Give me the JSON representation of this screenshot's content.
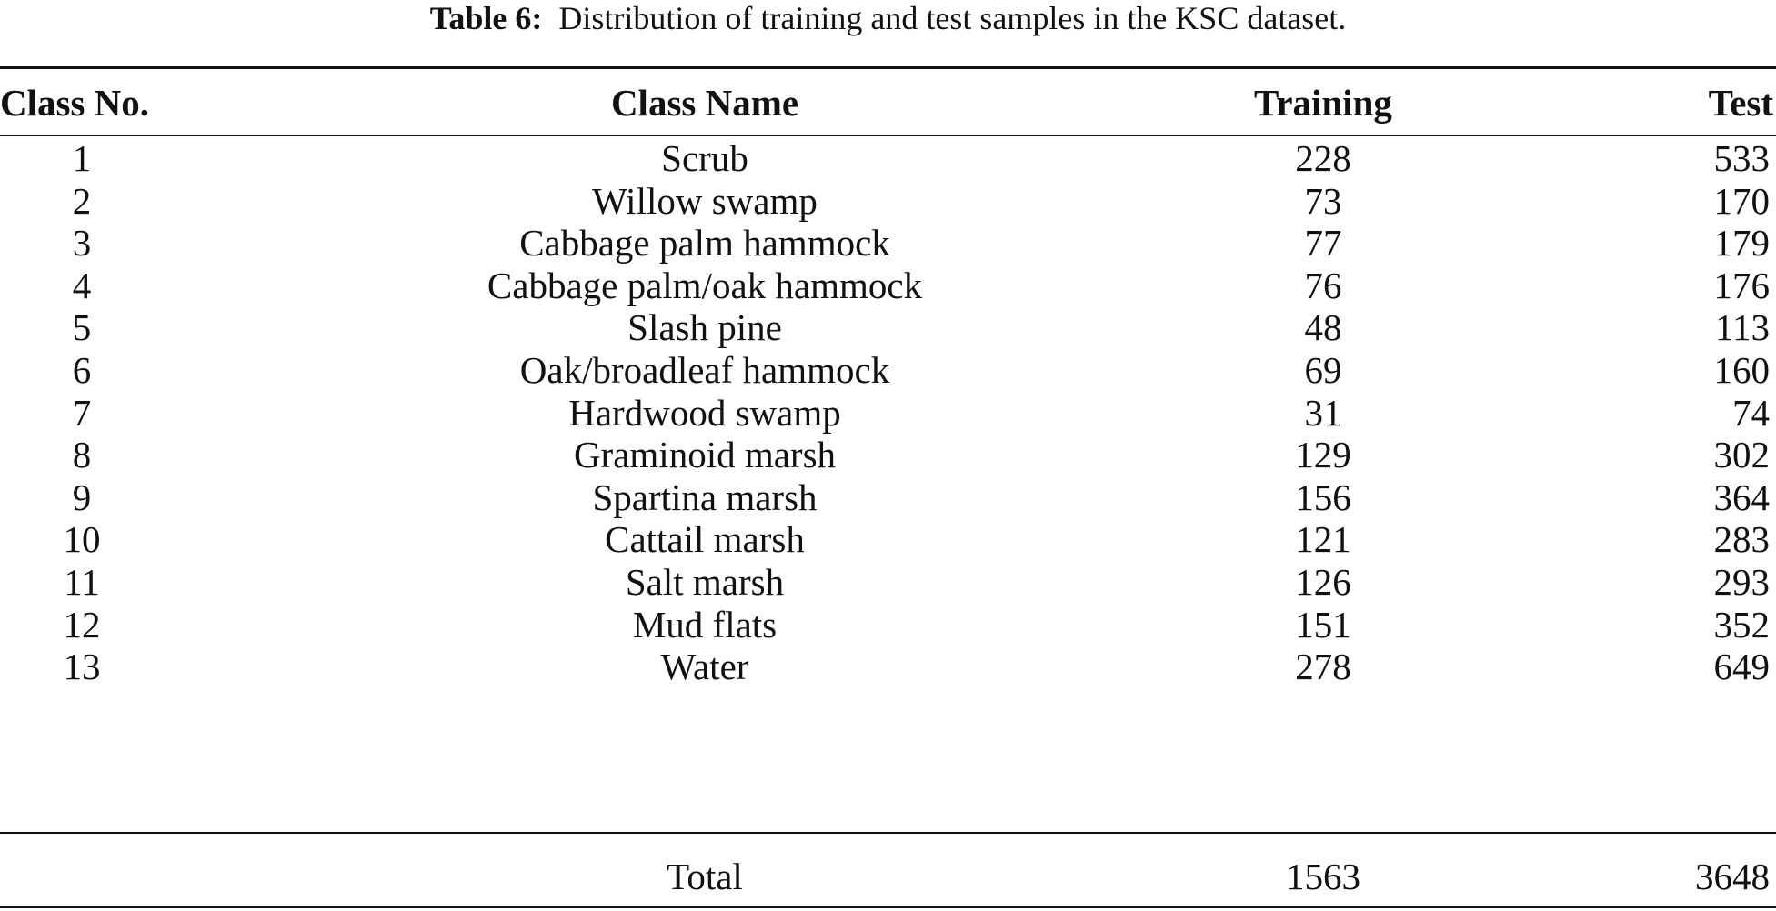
{
  "caption": {
    "label": "Table 6:",
    "text": "Distribution of training and test samples in the KSC dataset."
  },
  "table": {
    "headers": [
      "Class No.",
      "Class Name",
      "Training",
      "Test"
    ],
    "rows": [
      [
        "1",
        "Scrub",
        "228",
        "533"
      ],
      [
        "2",
        "Willow swamp",
        "73",
        "170"
      ],
      [
        "3",
        "Cabbage palm hammock",
        "77",
        "179"
      ],
      [
        "4",
        "Cabbage palm/oak hammock",
        "76",
        "176"
      ],
      [
        "5",
        "Slash pine",
        "48",
        "113"
      ],
      [
        "6",
        "Oak/broadleaf hammock",
        "69",
        "160"
      ],
      [
        "7",
        "Hardwood swamp",
        "31",
        "74"
      ],
      [
        "8",
        "Graminoid marsh",
        "129",
        "302"
      ],
      [
        "9",
        "Spartina marsh",
        "156",
        "364"
      ],
      [
        "10",
        "Cattail marsh",
        "121",
        "283"
      ],
      [
        "11",
        "Salt marsh",
        "126",
        "293"
      ],
      [
        "12",
        "Mud flats",
        "151",
        "352"
      ],
      [
        "13",
        "Water",
        "278",
        "649"
      ]
    ],
    "total": {
      "label": "Total",
      "training": "1563",
      "test": "3648"
    }
  }
}
